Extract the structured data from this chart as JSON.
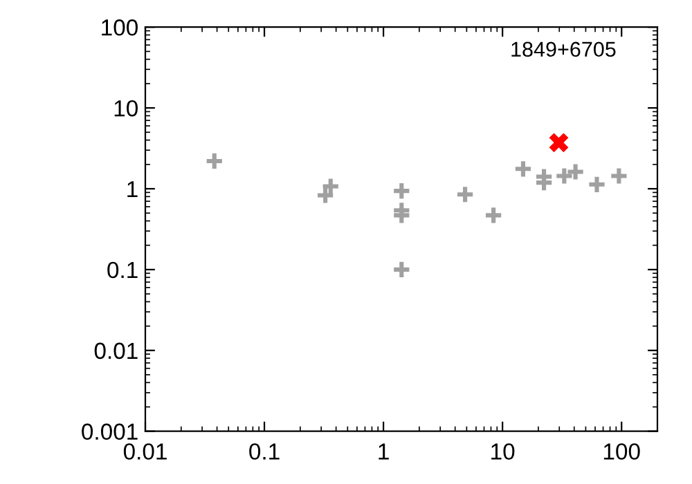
{
  "chart_data": {
    "type": "scatter",
    "log": "xy",
    "grid": false,
    "xlim": [
      0.01,
      200
    ],
    "xticks": [
      0.01,
      0.1,
      1,
      10,
      100
    ],
    "ylim": [
      0.001,
      100
    ],
    "yticks": [
      0.001,
      0.01,
      0.1,
      1,
      10,
      100
    ],
    "annotations": [
      "1849+6705"
    ],
    "series": [
      {
        "color": "#a0a0a0",
        "marker": "cross",
        "x": [
          0.038,
          0.325,
          0.36,
          1.42,
          1.42,
          1.42,
          1.42,
          4.85,
          8.4,
          14.9,
          22.3,
          22.3,
          33,
          41,
          62,
          95
        ],
        "values": [
          2.2,
          0.83,
          1.07,
          0.94,
          0.54,
          0.47,
          0.1,
          0.85,
          0.47,
          1.76,
          1.41,
          1.19,
          1.44,
          1.62,
          1.13,
          1.44
        ]
      },
      {
        "color": "#ff0000",
        "marker": "x",
        "x": [
          29.7
        ],
        "values": [
          3.72
        ]
      }
    ]
  }
}
